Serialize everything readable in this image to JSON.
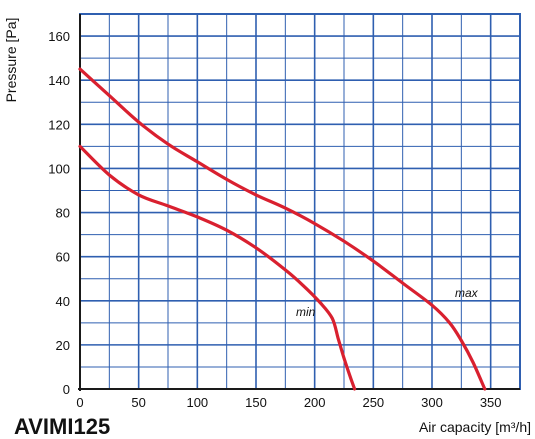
{
  "model_label": "AVIMI125",
  "chart_data": {
    "type": "line",
    "title": "",
    "xlabel": "Air capacity [m³/h]",
    "ylabel": "Pressure [Pa]",
    "xlim": [
      0,
      375
    ],
    "ylim": [
      0,
      170
    ],
    "x_ticks": [
      0,
      50,
      100,
      150,
      200,
      250,
      300,
      350
    ],
    "y_ticks": [
      0,
      20,
      40,
      60,
      80,
      100,
      120,
      140,
      160
    ],
    "grid": true,
    "grid_color": "#2f5fb0",
    "series_color": "#d9202f",
    "series": [
      {
        "name": "max",
        "x": [
          0,
          25,
          50,
          75,
          100,
          125,
          150,
          175,
          200,
          225,
          250,
          275,
          300,
          315,
          325,
          335,
          345
        ],
        "y": [
          145,
          133,
          121,
          111,
          103,
          95,
          88,
          82,
          75,
          67,
          58,
          48,
          38,
          30,
          22,
          12,
          0
        ]
      },
      {
        "name": "min",
        "x": [
          0,
          25,
          50,
          75,
          100,
          125,
          150,
          175,
          190,
          205,
          215,
          220,
          225,
          230,
          234
        ],
        "y": [
          110,
          97,
          88,
          83,
          78,
          72,
          64,
          54,
          47,
          39,
          32,
          23,
          14,
          6,
          0
        ]
      }
    ]
  }
}
